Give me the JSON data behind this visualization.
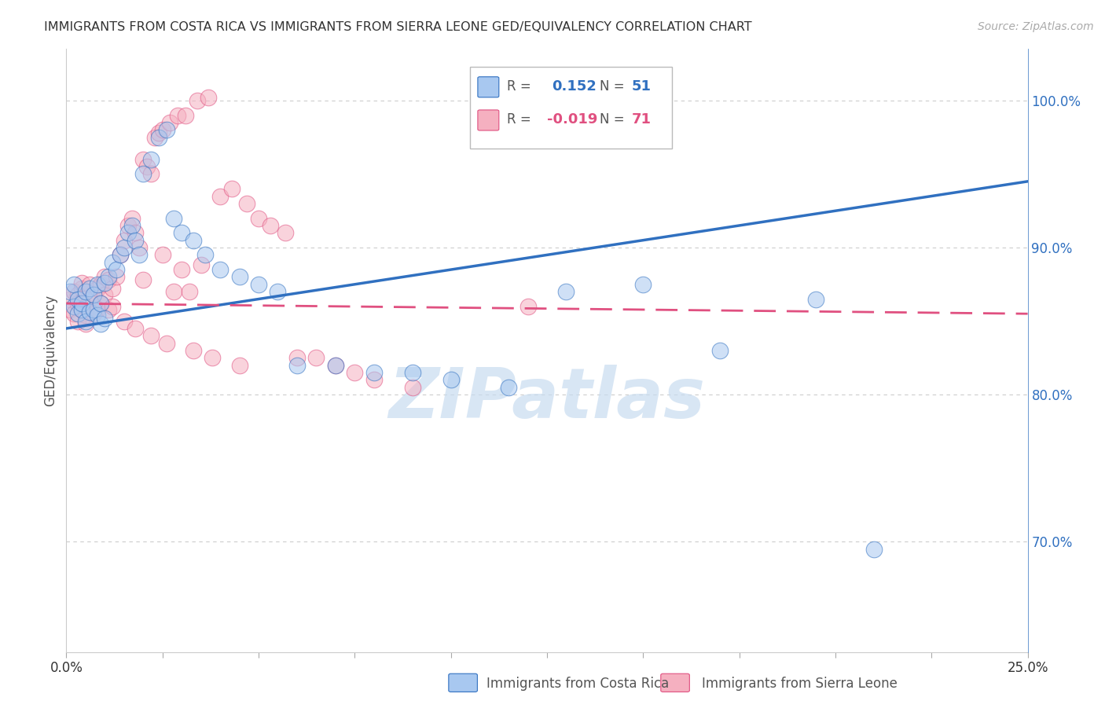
{
  "title": "IMMIGRANTS FROM COSTA RICA VS IMMIGRANTS FROM SIERRA LEONE GED/EQUIVALENCY CORRELATION CHART",
  "source": "Source: ZipAtlas.com",
  "ylabel": "GED/Equivalency",
  "ytick_labels": [
    "100.0%",
    "90.0%",
    "80.0%",
    "70.0%"
  ],
  "ytick_values": [
    1.0,
    0.9,
    0.8,
    0.7
  ],
  "xlim": [
    0.0,
    0.25
  ],
  "ylim": [
    0.625,
    1.035
  ],
  "legend_label_blue": "Immigrants from Costa Rica",
  "legend_label_pink": "Immigrants from Sierra Leone",
  "blue_color": "#A8C8F0",
  "pink_color": "#F5B0C0",
  "trend_blue_color": "#3070C0",
  "trend_pink_color": "#E05080",
  "blue_r": 0.152,
  "blue_n": 51,
  "pink_r": -0.019,
  "pink_n": 71,
  "blue_trend_x0": 0.0,
  "blue_trend_y0": 0.845,
  "blue_trend_x1": 0.25,
  "blue_trend_y1": 0.945,
  "pink_trend_x0": 0.0,
  "pink_trend_y0": 0.862,
  "pink_trend_x1": 0.25,
  "pink_trend_y1": 0.855,
  "blue_scatter_x": [
    0.001,
    0.002,
    0.002,
    0.003,
    0.003,
    0.004,
    0.004,
    0.005,
    0.005,
    0.006,
    0.006,
    0.007,
    0.007,
    0.008,
    0.008,
    0.009,
    0.009,
    0.01,
    0.01,
    0.011,
    0.012,
    0.013,
    0.014,
    0.015,
    0.016,
    0.017,
    0.018,
    0.019,
    0.02,
    0.022,
    0.024,
    0.026,
    0.028,
    0.03,
    0.033,
    0.036,
    0.04,
    0.045,
    0.05,
    0.055,
    0.06,
    0.07,
    0.08,
    0.09,
    0.1,
    0.115,
    0.13,
    0.15,
    0.17,
    0.195,
    0.21
  ],
  "blue_scatter_y": [
    0.87,
    0.875,
    0.86,
    0.865,
    0.855,
    0.858,
    0.862,
    0.87,
    0.85,
    0.856,
    0.872,
    0.858,
    0.868,
    0.854,
    0.875,
    0.862,
    0.848,
    0.876,
    0.852,
    0.88,
    0.89,
    0.885,
    0.895,
    0.9,
    0.91,
    0.915,
    0.905,
    0.895,
    0.95,
    0.96,
    0.975,
    0.98,
    0.92,
    0.91,
    0.905,
    0.895,
    0.885,
    0.88,
    0.875,
    0.87,
    0.82,
    0.82,
    0.815,
    0.815,
    0.81,
    0.805,
    0.87,
    0.875,
    0.83,
    0.865,
    0.695
  ],
  "pink_scatter_x": [
    0.001,
    0.001,
    0.002,
    0.002,
    0.003,
    0.003,
    0.003,
    0.004,
    0.004,
    0.004,
    0.005,
    0.005,
    0.005,
    0.006,
    0.006,
    0.007,
    0.007,
    0.008,
    0.008,
    0.009,
    0.009,
    0.01,
    0.01,
    0.011,
    0.011,
    0.012,
    0.012,
    0.013,
    0.014,
    0.015,
    0.016,
    0.017,
    0.018,
    0.019,
    0.02,
    0.021,
    0.022,
    0.023,
    0.024,
    0.025,
    0.027,
    0.029,
    0.031,
    0.034,
    0.037,
    0.04,
    0.043,
    0.047,
    0.05,
    0.053,
    0.057,
    0.06,
    0.065,
    0.07,
    0.075,
    0.08,
    0.09,
    0.03,
    0.035,
    0.025,
    0.02,
    0.028,
    0.032,
    0.015,
    0.018,
    0.022,
    0.026,
    0.033,
    0.038,
    0.045,
    0.12
  ],
  "pink_scatter_y": [
    0.865,
    0.858,
    0.87,
    0.855,
    0.868,
    0.862,
    0.85,
    0.872,
    0.858,
    0.876,
    0.854,
    0.86,
    0.848,
    0.865,
    0.875,
    0.855,
    0.868,
    0.872,
    0.858,
    0.862,
    0.875,
    0.88,
    0.868,
    0.878,
    0.858,
    0.872,
    0.86,
    0.88,
    0.895,
    0.905,
    0.915,
    0.92,
    0.91,
    0.9,
    0.96,
    0.955,
    0.95,
    0.975,
    0.978,
    0.98,
    0.985,
    0.99,
    0.99,
    1.0,
    1.002,
    0.935,
    0.94,
    0.93,
    0.92,
    0.915,
    0.91,
    0.825,
    0.825,
    0.82,
    0.815,
    0.81,
    0.805,
    0.885,
    0.888,
    0.895,
    0.878,
    0.87,
    0.87,
    0.85,
    0.845,
    0.84,
    0.835,
    0.83,
    0.825,
    0.82,
    0.86
  ],
  "watermark_text": "ZIPatlas",
  "background_color": "#FFFFFF",
  "grid_color": "#CCCCCC"
}
